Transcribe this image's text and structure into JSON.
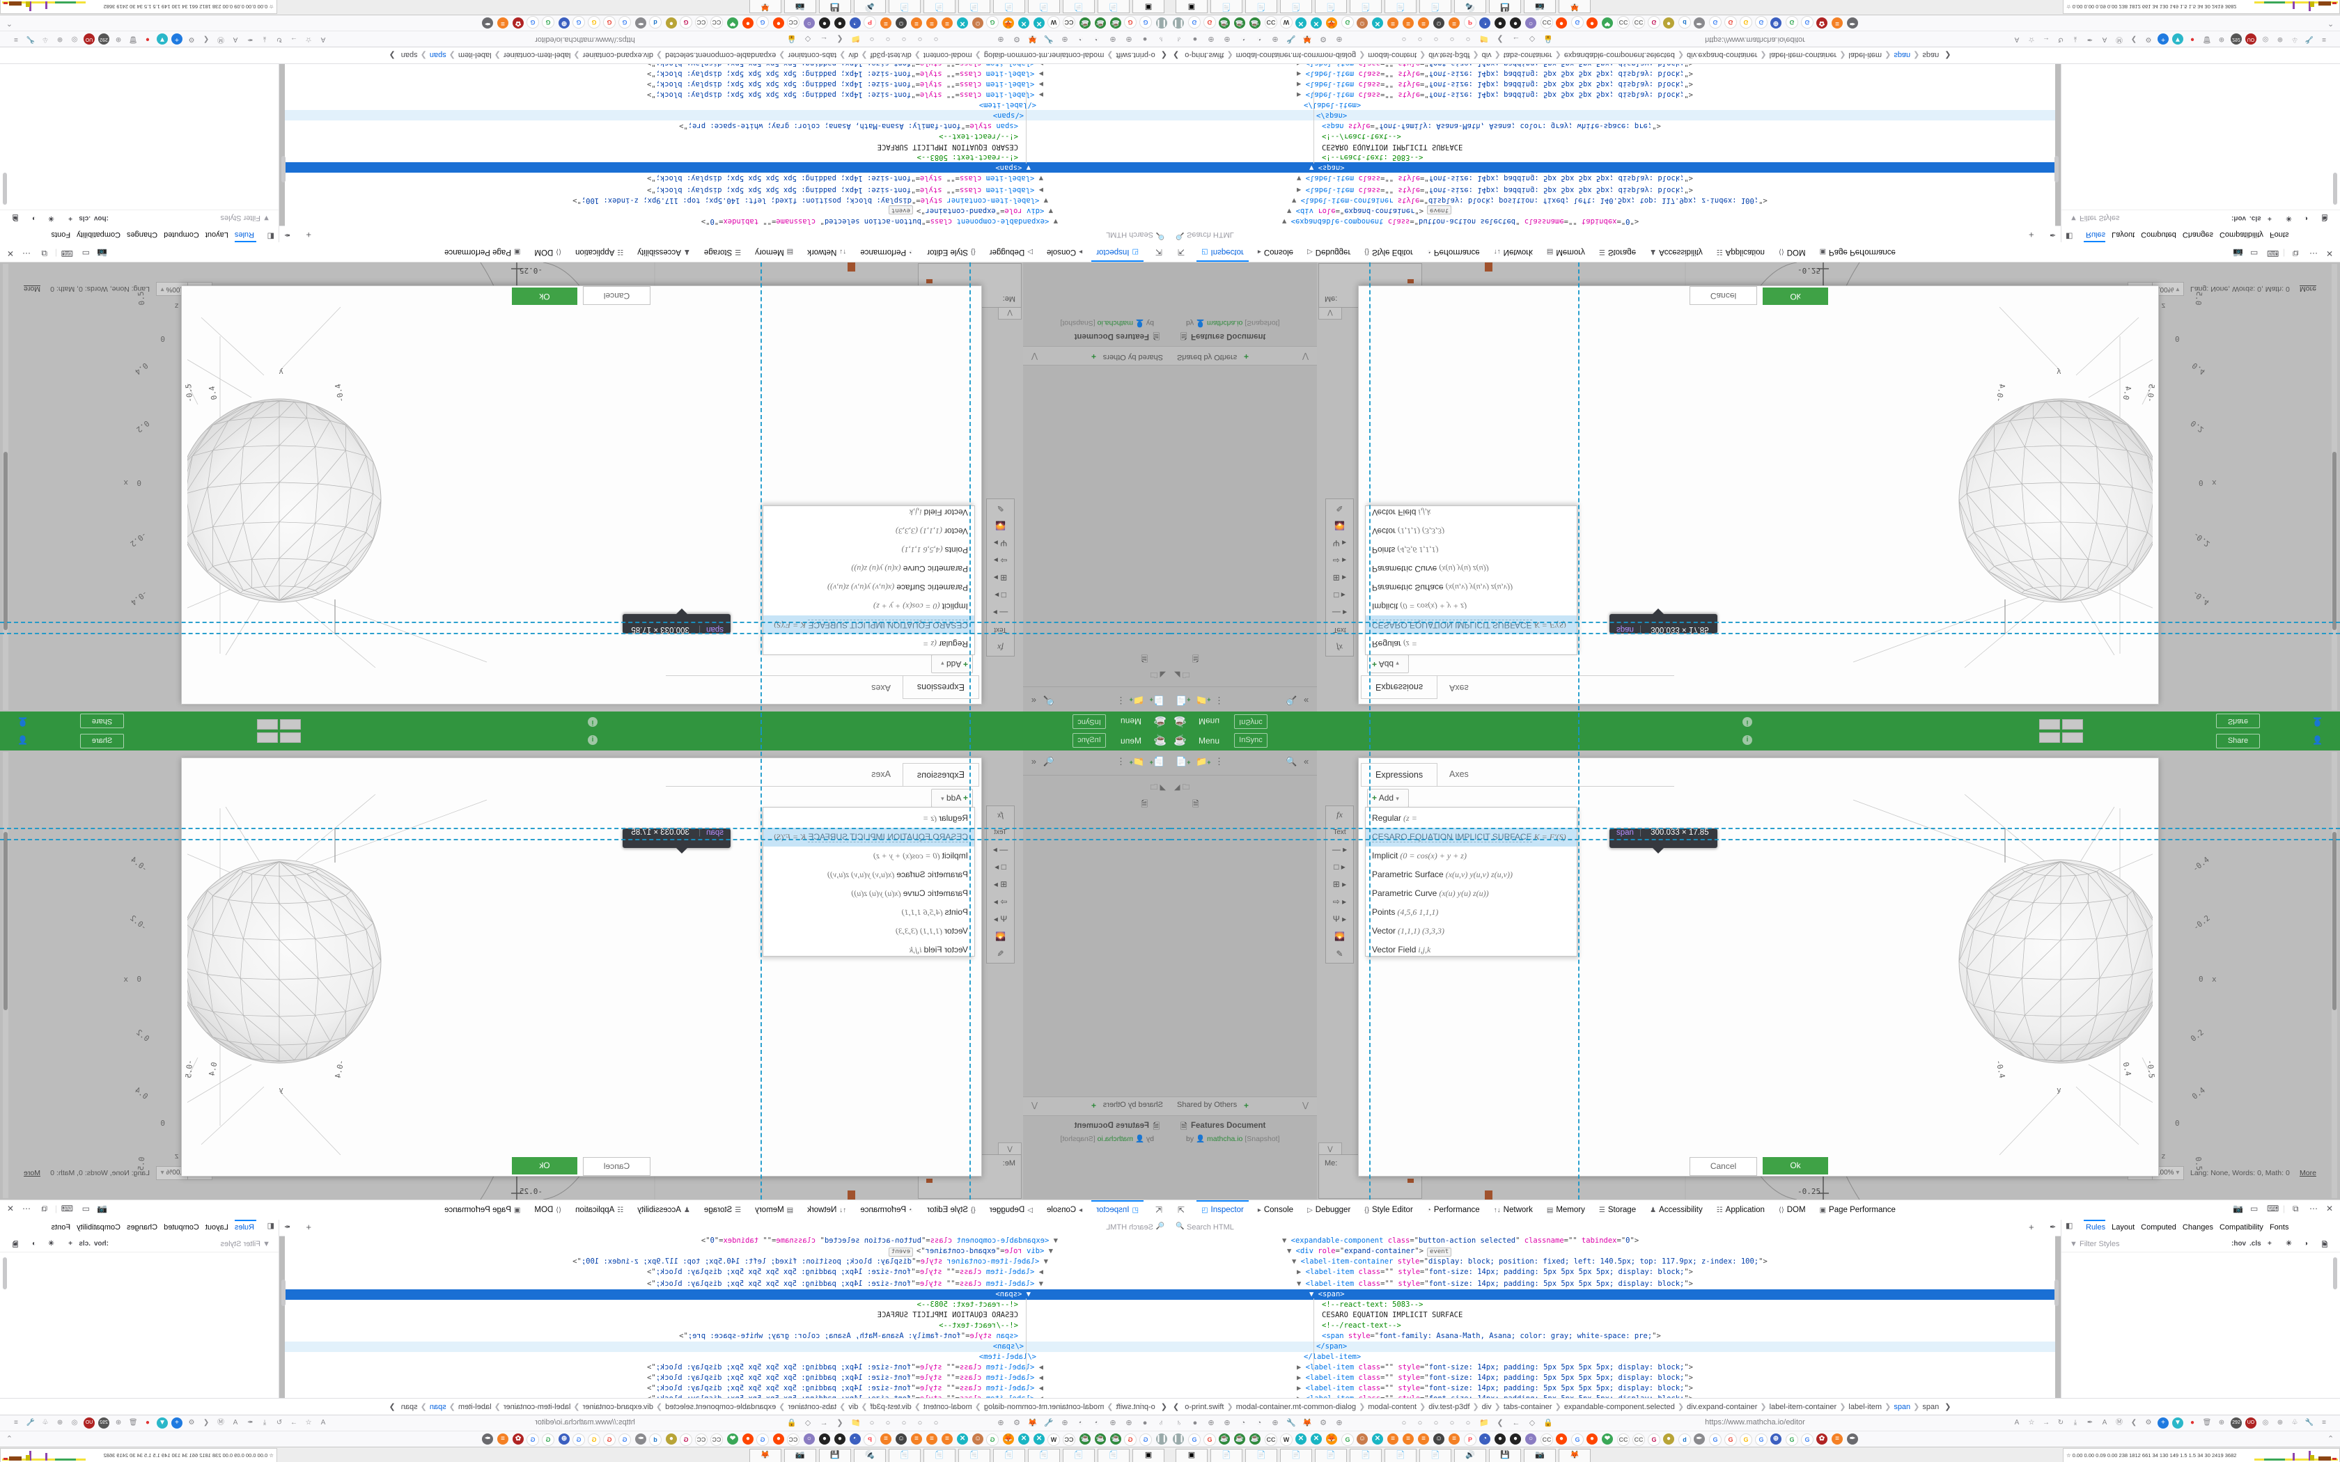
{
  "app": {
    "title_menu": "Menu",
    "insync": "InSync",
    "share": "Share",
    "info_icon": "i",
    "me_label": "Me:",
    "sidebar": {
      "shared_by_others": "Shared by Others",
      "add_plus": "+",
      "collapse": "«",
      "doc_title": "Features Document",
      "doc_by": "by",
      "doc_author": "mathcha.io",
      "doc_tag": "[Snapshot]"
    },
    "palette": [
      "fx",
      "Text",
      "— ▸",
      "□ ▸",
      "⊞ ▸",
      "⇨ ▸",
      "Ψ ▸",
      "🌄",
      "✎"
    ],
    "status": {
      "zoom": "100%",
      "lang": "Lang: None, Words: 0, Math: 0",
      "more": "More",
      "neg025": "-0.25"
    }
  },
  "modal": {
    "tabs": [
      "Expressions",
      "Axes"
    ],
    "add_label": "Add",
    "items": [
      {
        "label": "Regular",
        "formula": "(z ="
      },
      {
        "label": "CESARO EQUATION IMPLICIT SURFACE",
        "formula": "K = F′(S)",
        "highlight": true
      },
      {
        "label": "Implicit",
        "formula": "(0 = cos(x) + y + z)"
      },
      {
        "label": "Parametric Surface",
        "formula": "(x(u,v) y(u,v) z(u,v))"
      },
      {
        "label": "Parametric Curve",
        "formula": "(x(u) y(u) z(u))"
      },
      {
        "label": "Points",
        "formula": "(4,5,6 1,1,1)"
      },
      {
        "label": "Vector",
        "formula": "(1,1,1) (3,3,3)"
      },
      {
        "label": "Vector Field",
        "formula": "i,j,k"
      }
    ],
    "cancel": "Cancel",
    "ok": "Ok"
  },
  "tooltip": {
    "tag": "span",
    "dims": "300.033 × 17.85"
  },
  "plot": {
    "x_tick_labels": [
      "-0.4",
      "-0.2",
      "0",
      "0.2",
      "0.4"
    ],
    "x_axis_label": "x",
    "y_axis_label": "y",
    "z_axis_label": "z",
    "y_tick_labels": [
      "-0.4",
      "0.4"
    ],
    "z_tick_labels": [
      "-0.5",
      "0",
      "0.5"
    ]
  },
  "devtools": {
    "tabs": [
      {
        "icon": "◰",
        "label": "Inspector",
        "sel": true
      },
      {
        "icon": "▸",
        "label": "Console"
      },
      {
        "icon": "▷",
        "label": "Debugger"
      },
      {
        "icon": "{}",
        "label": "Style Editor"
      },
      {
        "icon": "◔",
        "label": "Performance"
      },
      {
        "icon": "↑↓",
        "label": "Network"
      },
      {
        "icon": "▤",
        "label": "Memory"
      },
      {
        "icon": "☰",
        "label": "Storage"
      },
      {
        "icon": "♟",
        "label": "Accessibility"
      },
      {
        "icon": "☷",
        "label": "Application"
      },
      {
        "icon": "⟨⟩",
        "label": "DOM"
      },
      {
        "icon": "▣",
        "label": "Page Performance"
      }
    ],
    "corner_icons": [
      "📷",
      "▭",
      "⌨",
      "⧉",
      "⋯",
      "✕"
    ],
    "search_placeholder": "Search HTML",
    "markup_rows": [
      {
        "ind": 161,
        "runs": [
          [
            "c-arr",
            "▼ "
          ],
          [
            "c-tag",
            "<expandable-component"
          ],
          [
            "c-attr",
            " class"
          ],
          [
            "c-p",
            "=\""
          ],
          [
            "c-val",
            "button-action selected"
          ],
          [
            "c-p",
            "\""
          ],
          [
            "c-attr",
            " classname"
          ],
          [
            "c-p",
            "=\"\""
          ],
          [
            "c-attr",
            " tabindex"
          ],
          [
            "c-p",
            "=\""
          ],
          [
            "c-val",
            "0"
          ],
          [
            "c-p",
            "\">"
          ]
        ]
      },
      {
        "ind": 168,
        "runs": [
          [
            "c-arr",
            "▼ "
          ],
          [
            "c-tag",
            "<div"
          ],
          [
            "c-attr",
            " role"
          ],
          [
            "c-p",
            "=\""
          ],
          [
            "c-val",
            "expand-container"
          ],
          [
            "c-p",
            "\">"
          ],
          [
            "badge",
            "event"
          ]
        ]
      },
      {
        "ind": 175,
        "runs": [
          [
            "c-arr",
            "▼ "
          ],
          [
            "c-tag",
            "<label-item-container"
          ],
          [
            "c-attr",
            " style"
          ],
          [
            "c-p",
            "=\""
          ],
          [
            "c-val",
            "display: block; position: fixed; left: 140.5px; top: 117.9px; z-index: 100;"
          ],
          [
            "c-p",
            "\">"
          ]
        ]
      },
      {
        "ind": 182,
        "runs": [
          [
            "c-arr",
            "▶ "
          ],
          [
            "c-tag",
            "<label-item"
          ],
          [
            "c-attr",
            " class"
          ],
          [
            "c-p",
            "=\"\""
          ],
          [
            "c-attr",
            " style"
          ],
          [
            "c-p",
            "=\""
          ],
          [
            "c-val",
            "font-size: 14px; padding: 5px 5px 5px 5px; display: block;"
          ],
          [
            "c-p",
            "\">"
          ]
        ]
      },
      {
        "ind": 182,
        "runs": [
          [
            "c-arr",
            "▼ "
          ],
          [
            "c-tag",
            "<label-item"
          ],
          [
            "c-attr",
            " class"
          ],
          [
            "c-p",
            "=\"\""
          ],
          [
            "c-attr",
            " style"
          ],
          [
            "c-p",
            "=\""
          ],
          [
            "c-val",
            "font-size: 14px; padding: 5px 5px 5px 5px; display: block;"
          ],
          [
            "c-p",
            "\">"
          ]
        ]
      },
      {
        "ind": 200,
        "sel": true,
        "runs": [
          [
            "c-arr",
            "▼ "
          ],
          [
            "c-tag",
            "<span>"
          ]
        ]
      },
      {
        "ind": 218,
        "runs": [
          [
            "c-cmt",
            "<!--react-text: 5083-->"
          ]
        ]
      },
      {
        "ind": 218,
        "runs": [
          [
            "c-txt",
            "CESARO EQUATION IMPLICIT SURFACE"
          ]
        ]
      },
      {
        "ind": 218,
        "runs": [
          [
            "c-cmt",
            "<!--/react-text-->"
          ]
        ]
      },
      {
        "ind": 218,
        "runs": [
          [
            "c-tag",
            "<span"
          ],
          [
            "c-attr",
            " style"
          ],
          [
            "c-p",
            "=\""
          ],
          [
            "c-val",
            "font-family: Asana-Math, Asana; color: gray; white-space: pre;"
          ],
          [
            "c-p",
            "\">"
          ]
        ]
      },
      {
        "ind": 210,
        "hl": true,
        "runs": [
          [
            "c-tag",
            "</span>"
          ]
        ]
      },
      {
        "ind": 192,
        "runs": [
          [
            "c-tag",
            "</label-item>"
          ]
        ]
      },
      {
        "ind": 182,
        "runs": [
          [
            "c-arr",
            "▶ "
          ],
          [
            "c-tag",
            "<label-item"
          ],
          [
            "c-attr",
            " class"
          ],
          [
            "c-p",
            "=\"\""
          ],
          [
            "c-attr",
            " style"
          ],
          [
            "c-p",
            "=\""
          ],
          [
            "c-val",
            "font-size: 14px; padding: 5px 5px 5px 5px; display: block;"
          ],
          [
            "c-p",
            "\">"
          ]
        ]
      },
      {
        "ind": 182,
        "runs": [
          [
            "c-arr",
            "▶ "
          ],
          [
            "c-tag",
            "<label-item"
          ],
          [
            "c-attr",
            " class"
          ],
          [
            "c-p",
            "=\"\""
          ],
          [
            "c-attr",
            " style"
          ],
          [
            "c-p",
            "=\""
          ],
          [
            "c-val",
            "font-size: 14px; padding: 5px 5px 5px 5px; display: block;"
          ],
          [
            "c-p",
            "\">"
          ]
        ]
      },
      {
        "ind": 182,
        "runs": [
          [
            "c-arr",
            "▶ "
          ],
          [
            "c-tag",
            "<label-item"
          ],
          [
            "c-attr",
            " class"
          ],
          [
            "c-p",
            "=\"\""
          ],
          [
            "c-attr",
            " style"
          ],
          [
            "c-p",
            "=\""
          ],
          [
            "c-val",
            "font-size: 14px; padding: 5px 5px 5px 5px; display: block;"
          ],
          [
            "c-p",
            "\">"
          ]
        ]
      },
      {
        "ind": 182,
        "runs": [
          [
            "c-arr",
            "▶ "
          ],
          [
            "c-tag",
            "<label-item"
          ],
          [
            "c-attr",
            " class"
          ],
          [
            "c-p",
            "=\"\""
          ],
          [
            "c-attr",
            " style"
          ],
          [
            "c-p",
            "=\""
          ],
          [
            "c-val",
            "font-size: 14px; padding: 5px 5px 5px 5px; display: block;"
          ],
          [
            "c-p",
            "\">"
          ]
        ]
      }
    ],
    "rules_tabs": [
      {
        "label": "Rules",
        "sel": true
      },
      {
        "label": "Layout"
      },
      {
        "label": "Computed"
      },
      {
        "label": "Changes"
      },
      {
        "label": "Compatibility"
      },
      {
        "label": "Fonts"
      }
    ],
    "filter_placeholder": "Filter Styles",
    "rules_icons": [
      ":hov",
      ".cls",
      "+",
      "☀",
      "◑",
      "🗎"
    ],
    "breadcrumbs": [
      {
        "label": "o-print.swift"
      },
      {
        "label": "modal-container.mt-common-dialog"
      },
      {
        "label": "modal-content"
      },
      {
        "label": "div.test-p3df"
      },
      {
        "label": "div"
      },
      {
        "label": "tabs-container"
      },
      {
        "label": "expandable-component.selected"
      },
      {
        "label": "div.expand-container"
      },
      {
        "label": "label-item-container"
      },
      {
        "label": "label-item"
      },
      {
        "label": "span",
        "sel": true
      },
      {
        "label": "span"
      }
    ]
  },
  "browser": {
    "url": "https://www.mathcha.io/editor",
    "nav_left_icons": [
      "♄",
      "●",
      "⊕",
      "⊕",
      "◔",
      "◔",
      "⊕",
      "🔧",
      "🦊",
      "⚙",
      "⊕",
      "○",
      "○",
      "○",
      "○",
      "○",
      "📁",
      "❮",
      "←",
      "◇",
      "🔒"
    ],
    "nav_right_icons": [
      "A",
      "☆",
      "→",
      "↻",
      "⤓",
      "✒",
      "A",
      "Ⓜ",
      "❮",
      "⚙",
      "+",
      "▼",
      "●",
      "🗑",
      "⊕",
      "292",
      "UO",
      "◎",
      "⊕",
      "♧",
      "🔧",
      "≡"
    ],
    "bookmarks": [
      {
        "g": "❙❙",
        "c": "#9aa"
      },
      {
        "g": "G",
        "c": "#4285f4"
      },
      {
        "g": "G",
        "c": "#ea4335"
      },
      {
        "g": "☕",
        "c": "#2f8a3c"
      },
      {
        "g": "☕",
        "c": "#2f8a3c"
      },
      {
        "g": "☕",
        "c": "#2f8a3c"
      },
      {
        "g": "CC",
        "c": "#555"
      },
      {
        "g": "W",
        "c": "#333"
      },
      {
        "g": "✕",
        "c": "#19b5c3"
      },
      {
        "g": "✕",
        "c": "#19b5c3"
      },
      {
        "g": "🦊",
        "c": "#ff9500"
      },
      {
        "g": "G",
        "c": "#34a853"
      },
      {
        "g": "☺",
        "c": "#c97b4a"
      },
      {
        "g": "✕",
        "c": "#19b5c3"
      },
      {
        "g": "≡",
        "c": "#f48024"
      },
      {
        "g": "≡",
        "c": "#f48024"
      },
      {
        "g": "≡",
        "c": "#f48024"
      },
      {
        "g": "☺",
        "c": "#444"
      },
      {
        "g": "≡",
        "c": "#f48024"
      },
      {
        "g": "P",
        "c": "#ff424d"
      },
      {
        "g": "◔",
        "c": "#3b5fc0"
      },
      {
        "g": "●",
        "c": "#222"
      },
      {
        "g": "●",
        "c": "#222"
      },
      {
        "g": "○",
        "c": "#8a7cc2"
      },
      {
        "g": "CC",
        "c": "#777"
      },
      {
        "g": "●",
        "c": "#ff4500"
      },
      {
        "g": "G",
        "c": "#4285f4"
      },
      {
        "g": "●",
        "c": "#ff4500"
      },
      {
        "g": "❤",
        "c": "#3aa757"
      },
      {
        "g": "CC",
        "c": "#777"
      },
      {
        "g": "CC",
        "c": "#777"
      },
      {
        "g": "G",
        "c": "#c2185b"
      },
      {
        "g": "●",
        "c": "#b8a437"
      },
      {
        "g": "d",
        "c": "#1a73c9"
      },
      {
        "g": "✒",
        "c": "#8a8a8e"
      },
      {
        "g": "G",
        "c": "#4285f4"
      },
      {
        "g": "G",
        "c": "#ea4335"
      },
      {
        "g": "G",
        "c": "#fbbc05"
      },
      {
        "g": "G",
        "c": "#4285f4"
      },
      {
        "g": "⊕",
        "c": "#3b5fc0"
      },
      {
        "g": "G",
        "c": "#34a853"
      },
      {
        "g": "G",
        "c": "#4285f4"
      },
      {
        "g": "✿",
        "c": "#b02323"
      },
      {
        "g": "≡",
        "c": "#f48024"
      },
      {
        "g": "✒",
        "c": "#6a6a6e"
      }
    ],
    "bookmarks_overflow": "⌃",
    "taskbar_icons": [
      "▣",
      "📄",
      "📄",
      "📄",
      "📄",
      "📄",
      "📄",
      "📄",
      "🔊",
      "💾",
      "📷",
      "🦊"
    ],
    "monitor_text": "☆ 0.00 0.00 0.09 0.00  238 1812 661  34  130  149  1.5  1.5  34  30  2419 3682"
  }
}
